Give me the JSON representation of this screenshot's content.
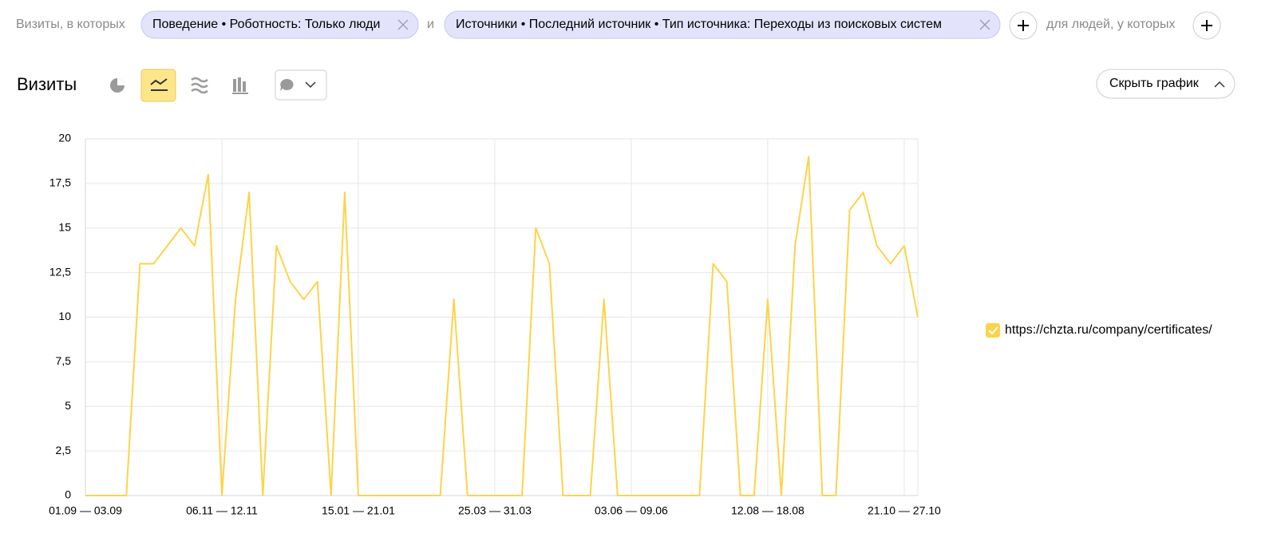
{
  "filter_bar": {
    "prefix": "Визиты, в которых",
    "chips": [
      "Поведение • Роботность: Только люди",
      "Источники • Последний источник • Тип источника: Переходы из поисковых систем"
    ],
    "conjunction": "и",
    "people_label": "для людей, у которых"
  },
  "report": {
    "title": "Визиты",
    "hide_button": "Скрыть график"
  },
  "chart_data": {
    "type": "line",
    "categories": [
      "01.09 — 03.09",
      null,
      null,
      null,
      null,
      null,
      null,
      null,
      null,
      null,
      "06.11 — 12.11",
      null,
      null,
      null,
      null,
      null,
      null,
      null,
      null,
      null,
      "15.01 — 21.01",
      null,
      null,
      null,
      null,
      null,
      null,
      null,
      null,
      null,
      "25.03 — 31.03",
      null,
      null,
      null,
      null,
      null,
      null,
      null,
      null,
      null,
      "03.06 — 09.06",
      null,
      null,
      null,
      null,
      null,
      null,
      null,
      null,
      null,
      "12.08 — 18.08",
      null,
      null,
      null,
      null,
      null,
      null,
      null,
      null,
      null,
      "21.10 — 27.10",
      null
    ],
    "series": [
      {
        "name": "https://chzta.ru/company/certificates/",
        "color": "#fdd34a",
        "values": [
          0,
          0,
          0,
          0,
          13,
          13,
          14,
          15,
          14,
          18,
          0,
          11,
          17,
          0,
          14,
          12,
          11,
          12,
          0,
          17,
          0,
          0,
          0,
          0,
          0,
          0,
          0,
          11,
          0,
          0,
          0,
          0,
          0,
          15,
          13,
          0,
          0,
          0,
          11,
          0,
          0,
          0,
          0,
          0,
          0,
          0,
          13,
          12,
          0,
          0,
          11,
          0,
          14,
          19,
          0,
          0,
          16,
          17,
          14,
          13,
          14,
          10
        ]
      }
    ],
    "ylim": [
      0,
      20
    ],
    "yticks": [
      0,
      {
        "value": 2.5,
        "label": "2,5"
      },
      5,
      {
        "value": 7.5,
        "label": "7,5"
      },
      10,
      {
        "value": 12.5,
        "label": "12,5"
      },
      15,
      {
        "value": 17.5,
        "label": "17,5"
      },
      20
    ],
    "grid": true,
    "legend_position": "right"
  }
}
